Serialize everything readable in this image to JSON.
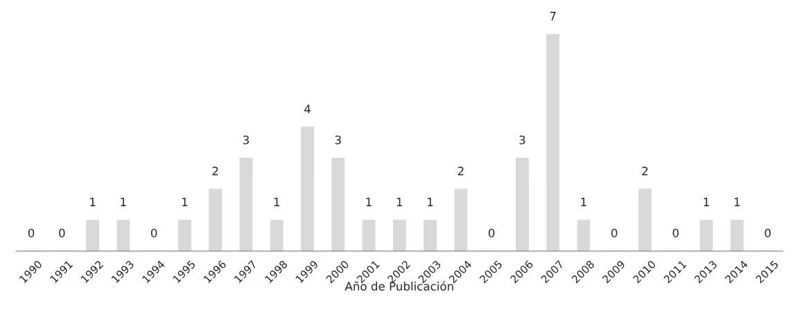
{
  "chart_data": {
    "type": "bar",
    "xlabel": "Año de Publicación",
    "categories": [
      "1990",
      "1991",
      "1992",
      "1993",
      "1994",
      "1995",
      "1996",
      "1997",
      "1998",
      "1999",
      "2000",
      "2001",
      "2002",
      "2003",
      "2004",
      "2005",
      "2006",
      "2007",
      "2008",
      "2009",
      "2010",
      "2011",
      "2013",
      "2014",
      "2015"
    ],
    "values": [
      0,
      0,
      1,
      1,
      0,
      1,
      2,
      3,
      1,
      4,
      3,
      1,
      1,
      1,
      2,
      0,
      3,
      7,
      1,
      0,
      2,
      0,
      1,
      1,
      0
    ],
    "color": "#d9d9d9",
    "data_labels": true,
    "tick_labels": "x",
    "grid": false,
    "legend": false
  }
}
